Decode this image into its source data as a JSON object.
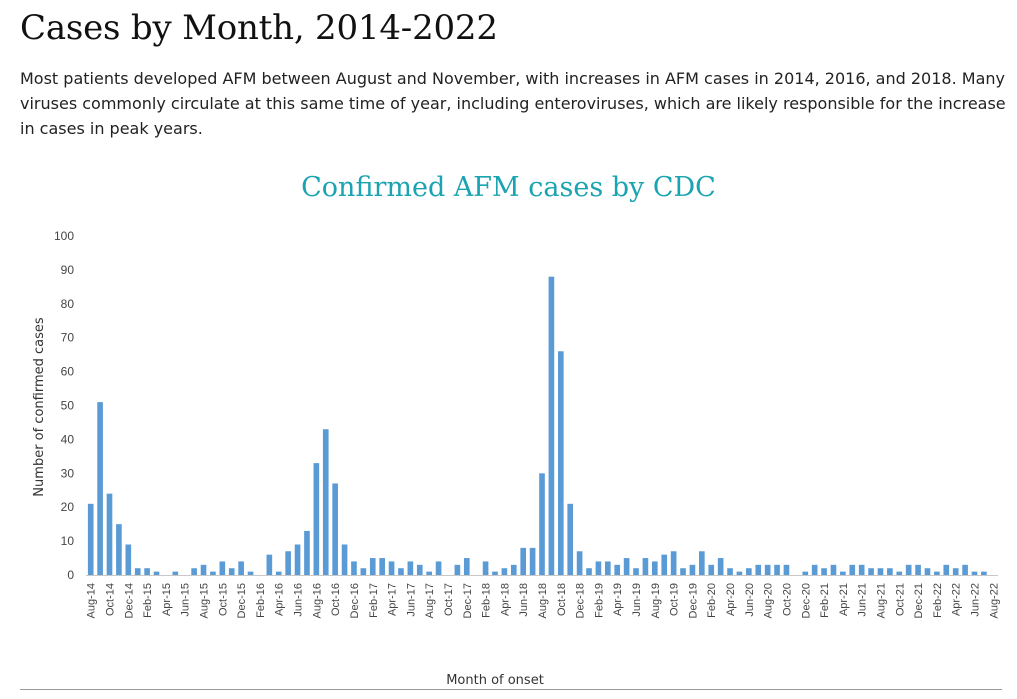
{
  "heading": "Cases by Month, 2014-2022",
  "intro": "Most patients developed AFM between August and November, with increases in AFM cases in 2014, 2016, and 2018. Many viruses commonly circulate at this same time of year, including enteroviruses, which are likely responsible for the increase in cases in peak years.",
  "chart_data": {
    "type": "bar",
    "title": "Confirmed AFM cases by CDC",
    "xlabel": "Month of onset",
    "ylabel": "Number of confirmed cases",
    "ylim": [
      0,
      100
    ],
    "yticks": [
      0,
      10,
      20,
      30,
      40,
      50,
      60,
      70,
      80,
      90,
      100
    ],
    "grid": false,
    "color": "#5b9bd5",
    "categories": [
      "Aug-14",
      "Sep-14",
      "Oct-14",
      "Nov-14",
      "Dec-14",
      "Jan-15",
      "Feb-15",
      "Mar-15",
      "Apr-15",
      "May-15",
      "Jun-15",
      "Jul-15",
      "Aug-15",
      "Sep-15",
      "Oct-15",
      "Nov-15",
      "Dec-15",
      "Jan-16",
      "Feb-16",
      "Mar-16",
      "Apr-16",
      "May-16",
      "Jun-16",
      "Jul-16",
      "Aug-16",
      "Sep-16",
      "Oct-16",
      "Nov-16",
      "Dec-16",
      "Jan-17",
      "Feb-17",
      "Mar-17",
      "Apr-17",
      "May-17",
      "Jun-17",
      "Jul-17",
      "Aug-17",
      "Sep-17",
      "Oct-17",
      "Nov-17",
      "Dec-17",
      "Jan-18",
      "Feb-18",
      "Mar-18",
      "Apr-18",
      "May-18",
      "Jun-18",
      "Jul-18",
      "Aug-18",
      "Sep-18",
      "Oct-18",
      "Nov-18",
      "Dec-18",
      "Jan-19",
      "Feb-19",
      "Mar-19",
      "Apr-19",
      "May-19",
      "Jun-19",
      "Jul-19",
      "Aug-19",
      "Sep-19",
      "Oct-19",
      "Nov-19",
      "Dec-19",
      "Jan-20",
      "Feb-20",
      "Mar-20",
      "Apr-20",
      "May-20",
      "Jun-20",
      "Jul-20",
      "Aug-20",
      "Sep-20",
      "Oct-20",
      "Nov-20",
      "Dec-20",
      "Jan-21",
      "Feb-21",
      "Mar-21",
      "Apr-21",
      "May-21",
      "Jun-21",
      "Jul-21",
      "Aug-21",
      "Sep-21",
      "Oct-21",
      "Nov-21",
      "Dec-21",
      "Jan-22",
      "Feb-22",
      "Mar-22",
      "Apr-22",
      "May-22",
      "Jun-22",
      "Jul-22",
      "Aug-22"
    ],
    "values": [
      21,
      51,
      24,
      15,
      9,
      2,
      2,
      1,
      0,
      1,
      0,
      2,
      3,
      1,
      4,
      2,
      4,
      1,
      0,
      6,
      1,
      7,
      9,
      13,
      33,
      43,
      27,
      9,
      4,
      2,
      5,
      5,
      4,
      2,
      4,
      3,
      1,
      4,
      0,
      3,
      5,
      0,
      4,
      1,
      2,
      3,
      8,
      8,
      30,
      88,
      66,
      21,
      7,
      2,
      4,
      4,
      3,
      5,
      2,
      5,
      4,
      6,
      7,
      2,
      3,
      7,
      3,
      5,
      2,
      1,
      2,
      3,
      3,
      3,
      3,
      0,
      1,
      3,
      2,
      3,
      1,
      3,
      3,
      2,
      2,
      2,
      1,
      3,
      3,
      2,
      1,
      3,
      2,
      3,
      1,
      1,
      0
    ],
    "xtick_labels": [
      "Aug-14",
      "Oct-14",
      "Dec-14",
      "Feb-15",
      "Apr-15",
      "Jun-15",
      "Aug-15",
      "Oct-15",
      "Dec-15",
      "Feb-16",
      "Apr-16",
      "Jun-16",
      "Aug-16",
      "Oct-16",
      "Dec-16",
      "Feb-17",
      "Apr-17",
      "Jun-17",
      "Aug-17",
      "Oct-17",
      "Dec-17",
      "Feb-18",
      "Apr-18",
      "Jun-18",
      "Aug-18",
      "Oct-18",
      "Dec-18",
      "Feb-19",
      "Apr-19",
      "Jun-19",
      "Aug-19",
      "Oct-19",
      "Dec-19",
      "Feb-20",
      "Apr-20",
      "Jun-20",
      "Aug-20",
      "Oct-20",
      "Dec-20",
      "Feb-21",
      "Apr-21",
      "Jun-21",
      "Aug-21",
      "Oct-21",
      "Dec-21",
      "Feb-22",
      "Apr-22",
      "Jun-22",
      "Aug-22"
    ]
  }
}
